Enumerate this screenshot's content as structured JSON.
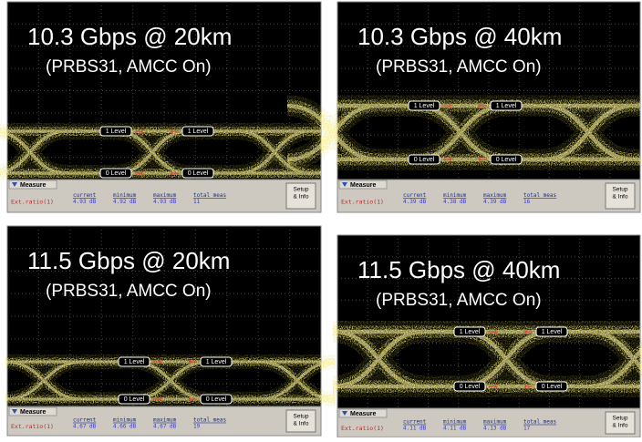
{
  "panels": [
    {
      "title": "10.3 Gbps @ 20km",
      "subtitle": "(PRBS31, AMCC On)",
      "markers": [
        "1 Level",
        "1 Level",
        "0 Level",
        "0 Level"
      ],
      "measure": {
        "tab": "Measure",
        "label": "Ext.ratio(1)",
        "headers": [
          "current",
          "minimum",
          "maximum",
          "total meas"
        ],
        "values": [
          "4.93 dB",
          "4.92 dB",
          "4.93 dB",
          "11"
        ]
      },
      "button": [
        "Setup",
        "& Info"
      ]
    },
    {
      "title": "10.3 Gbps @ 40km",
      "subtitle": "(PRBS31, AMCC On)",
      "markers": [
        "1 Level",
        "1 Level",
        "0 Level",
        "0 Level"
      ],
      "measure": {
        "tab": "Measure",
        "label": "Ext.ratio(1)",
        "headers": [
          "current",
          "minimum",
          "maximum",
          "total meas"
        ],
        "values": [
          "4.39 dB",
          "4.38 dB",
          "4.39 dB",
          "16"
        ]
      },
      "button": [
        "Setup",
        "& Info"
      ]
    },
    {
      "title": "11.5 Gbps @ 20km",
      "subtitle": "(PRBS31, AMCC On)",
      "markers": [
        "1 Level",
        "1 Level",
        "0 Level",
        "0 Level"
      ],
      "measure": {
        "tab": "Measure",
        "label": "Ext.ratio(1)",
        "headers": [
          "current",
          "minimum",
          "maximum",
          "total meas"
        ],
        "values": [
          "4.67 dB",
          "4.66 dB",
          "4.67 dB",
          "19"
        ]
      },
      "button": [
        "Setup",
        "& Info"
      ]
    },
    {
      "title": "11.5 Gbps @ 40km",
      "subtitle": "(PRBS31, AMCC On)",
      "markers": [
        "1 Level",
        "1 Level",
        "0 Level",
        "0 Level"
      ],
      "measure": {
        "tab": "Measure",
        "label": "Ext.ratio(1)",
        "headers": [
          "current",
          "minimum",
          "maximum",
          "total meas"
        ],
        "values": [
          "4.11 dB",
          "4.11 dB",
          "4.13 dB",
          "17"
        ]
      },
      "button": [
        "Setup",
        "& Info"
      ]
    }
  ]
}
